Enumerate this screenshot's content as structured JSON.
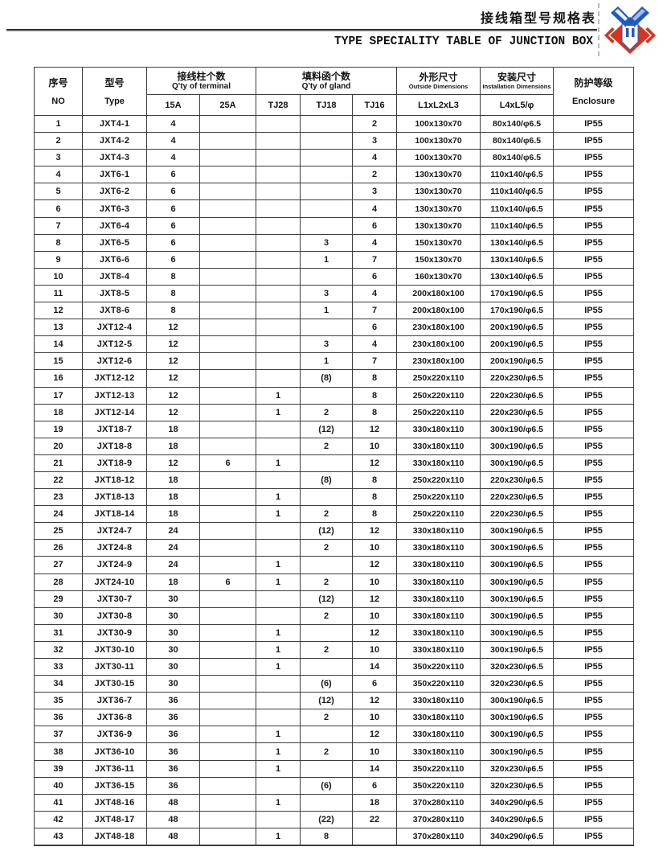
{
  "header": {
    "title_cn": "接线箱型号规格表",
    "title_en": "TYPE SPECIALITY TABLE OF JUNCTION BOX"
  },
  "colors": {
    "logo_red": "#d23522",
    "logo_blue": "#2059c0",
    "table_border": "#3d3d3d"
  },
  "table": {
    "header": {
      "no_cn": "序号",
      "no_en": "NO",
      "type_cn": "型号",
      "type_en": "Type",
      "terminal_cn": "接线柱个数",
      "terminal_en": "Q'ty of terminal",
      "gland_cn": "填料函个数",
      "gland_en": "Q'ty of gland",
      "outside_cn": "外形尺寸",
      "outside_en": "Outside Dimensions",
      "outside_sub": "L1xL2xL3",
      "install_cn": "安装尺寸",
      "install_en": "Installation Dimensions",
      "install_sub": "L4xL5/φ",
      "enclosure_cn": "防护等级",
      "enclosure_en": "Enclosure",
      "sub_terminal": [
        "15A",
        "25A"
      ],
      "sub_gland": [
        "TJ28",
        "TJ18",
        "TJ16"
      ]
    },
    "rows": [
      [
        "1",
        "JXT4-1",
        "4",
        "",
        "",
        "",
        "2",
        "100x130x70",
        "80x140/φ6.5",
        "IP55"
      ],
      [
        "2",
        "JXT4-2",
        "4",
        "",
        "",
        "",
        "3",
        "100x130x70",
        "80x140/φ6.5",
        "IP55"
      ],
      [
        "3",
        "JXT4-3",
        "4",
        "",
        "",
        "",
        "4",
        "100x130x70",
        "80x140/φ6.5",
        "IP55"
      ],
      [
        "4",
        "JXT6-1",
        "6",
        "",
        "",
        "",
        "2",
        "130x130x70",
        "110x140/φ6.5",
        "IP55"
      ],
      [
        "5",
        "JXT6-2",
        "6",
        "",
        "",
        "",
        "3",
        "130x130x70",
        "110x140/φ6.5",
        "IP55"
      ],
      [
        "6",
        "JXT6-3",
        "6",
        "",
        "",
        "",
        "4",
        "130x130x70",
        "110x140/φ6.5",
        "IP55"
      ],
      [
        "7",
        "JXT6-4",
        "6",
        "",
        "",
        "",
        "6",
        "130x130x70",
        "110x140/φ6.5",
        "IP55"
      ],
      [
        "8",
        "JXT6-5",
        "6",
        "",
        "",
        "3",
        "4",
        "150x130x70",
        "130x140/φ6.5",
        "IP55"
      ],
      [
        "9",
        "JXT6-6",
        "6",
        "",
        "",
        "1",
        "7",
        "150x130x70",
        "130x140/φ6.5",
        "IP55"
      ],
      [
        "10",
        "JXT8-4",
        "8",
        "",
        "",
        "",
        "6",
        "160x130x70",
        "130x140/φ6.5",
        "IP55"
      ],
      [
        "11",
        "JXT8-5",
        "8",
        "",
        "",
        "3",
        "4",
        "200x180x100",
        "170x190/φ6.5",
        "IP55"
      ],
      [
        "12",
        "JXT8-6",
        "8",
        "",
        "",
        "1",
        "7",
        "200x180x100",
        "170x190/φ6.5",
        "IP55"
      ],
      [
        "13",
        "JXT12-4",
        "12",
        "",
        "",
        "",
        "6",
        "230x180x100",
        "200x190/φ6.5",
        "IP55"
      ],
      [
        "14",
        "JXT12-5",
        "12",
        "",
        "",
        "3",
        "4",
        "230x180x100",
        "200x190/φ6.5",
        "IP55"
      ],
      [
        "15",
        "JXT12-6",
        "12",
        "",
        "",
        "1",
        "7",
        "230x180x100",
        "200x190/φ6.5",
        "IP55"
      ],
      [
        "16",
        "JXT12-12",
        "12",
        "",
        "",
        "(8)",
        "8",
        "250x220x110",
        "220x230/φ6.5",
        "IP55"
      ],
      [
        "17",
        "JXT12-13",
        "12",
        "",
        "1",
        "",
        "8",
        "250x220x110",
        "220x230/φ6.5",
        "IP55"
      ],
      [
        "18",
        "JXT12-14",
        "12",
        "",
        "1",
        "2",
        "8",
        "250x220x110",
        "220x230/φ6.5",
        "IP55"
      ],
      [
        "19",
        "JXT18-7",
        "18",
        "",
        "",
        "(12)",
        "12",
        "330x180x110",
        "300x190/φ6.5",
        "IP55"
      ],
      [
        "20",
        "JXT18-8",
        "18",
        "",
        "",
        "2",
        "10",
        "330x180x110",
        "300x190/φ6.5",
        "IP55"
      ],
      [
        "21",
        "JXT18-9",
        "12",
        "6",
        "1",
        "",
        "12",
        "330x180x110",
        "300x190/φ6.5",
        "IP55"
      ],
      [
        "22",
        "JXT18-12",
        "18",
        "",
        "",
        "(8)",
        "8",
        "250x220x110",
        "220x230/φ6.5",
        "IP55"
      ],
      [
        "23",
        "JXT18-13",
        "18",
        "",
        "1",
        "",
        "8",
        "250x220x110",
        "220x230/φ6.5",
        "IP55"
      ],
      [
        "24",
        "JXT18-14",
        "18",
        "",
        "1",
        "2",
        "8",
        "250x220x110",
        "220x230/φ6.5",
        "IP55"
      ],
      [
        "25",
        "JXT24-7",
        "24",
        "",
        "",
        "(12)",
        "12",
        "330x180x110",
        "300x190/φ6.5",
        "IP55"
      ],
      [
        "26",
        "JXT24-8",
        "24",
        "",
        "",
        "2",
        "10",
        "330x180x110",
        "300x190/φ6.5",
        "IP55"
      ],
      [
        "27",
        "JXT24-9",
        "24",
        "",
        "1",
        "",
        "12",
        "330x180x110",
        "300x190/φ6.5",
        "IP55"
      ],
      [
        "28",
        "JXT24-10",
        "18",
        "6",
        "1",
        "2",
        "10",
        "330x180x110",
        "300x190/φ6.5",
        "IP55"
      ],
      [
        "29",
        "JXT30-7",
        "30",
        "",
        "",
        "(12)",
        "12",
        "330x180x110",
        "300x190/φ6.5",
        "IP55"
      ],
      [
        "30",
        "JXT30-8",
        "30",
        "",
        "",
        "2",
        "10",
        "330x180x110",
        "300x190/φ6.5",
        "IP55"
      ],
      [
        "31",
        "JXT30-9",
        "30",
        "",
        "1",
        "",
        "12",
        "330x180x110",
        "300x190/φ6.5",
        "IP55"
      ],
      [
        "32",
        "JXT30-10",
        "30",
        "",
        "1",
        "2",
        "10",
        "330x180x110",
        "300x190/φ6.5",
        "IP55"
      ],
      [
        "33",
        "JXT30-11",
        "30",
        "",
        "1",
        "",
        "14",
        "350x220x110",
        "320x230/φ6.5",
        "IP55"
      ],
      [
        "34",
        "JXT30-15",
        "30",
        "",
        "",
        "(6)",
        "6",
        "350x220x110",
        "320x230/φ6.5",
        "IP55"
      ],
      [
        "35",
        "JXT36-7",
        "36",
        "",
        "",
        "(12)",
        "12",
        "330x180x110",
        "300x190/φ6.5",
        "IP55"
      ],
      [
        "36",
        "JXT36-8",
        "36",
        "",
        "",
        "2",
        "10",
        "330x180x110",
        "300x190/φ6.5",
        "IP55"
      ],
      [
        "37",
        "JXT36-9",
        "36",
        "",
        "1",
        "",
        "12",
        "330x180x110",
        "300x190/φ6.5",
        "IP55"
      ],
      [
        "38",
        "JXT36-10",
        "36",
        "",
        "1",
        "2",
        "10",
        "330x180x110",
        "300x190/φ6.5",
        "IP55"
      ],
      [
        "39",
        "JXT36-11",
        "36",
        "",
        "1",
        "",
        "14",
        "350x220x110",
        "320x230/φ6.5",
        "IP55"
      ],
      [
        "40",
        "JXT36-15",
        "36",
        "",
        "",
        "(6)",
        "6",
        "350x220x110",
        "320x230/φ6.5",
        "IP55"
      ],
      [
        "41",
        "JXT48-16",
        "48",
        "",
        "1",
        "",
        "18",
        "370x280x110",
        "340x290/φ6.5",
        "IP55"
      ],
      [
        "42",
        "JXT48-17",
        "48",
        "",
        "",
        "(22)",
        "22",
        "370x280x110",
        "340x290/φ6.5",
        "IP55"
      ],
      [
        "43",
        "JXT48-18",
        "48",
        "",
        "1",
        "8",
        "",
        "370x280x110",
        "340x290/φ6.5",
        "IP55"
      ]
    ]
  }
}
